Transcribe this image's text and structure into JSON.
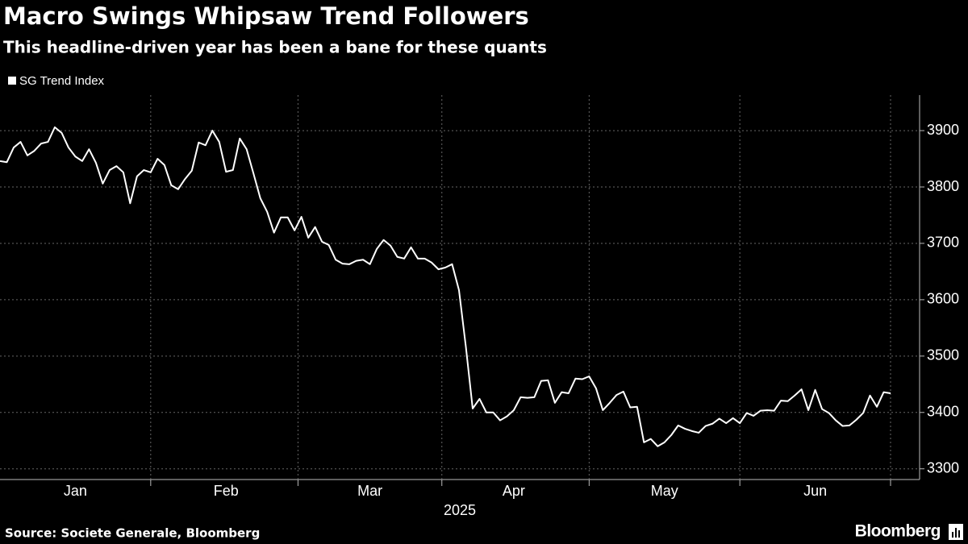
{
  "chart_data": {
    "type": "line",
    "title": "Macro Swings Whipsaw Trend Followers",
    "subtitle": "This headline-driven year has been a bane for these quants",
    "xlabel": "2025",
    "source": "Source: Societe Generale, Bloomberg",
    "brand": "Bloomberg",
    "categories": [
      null,
      null,
      null,
      null,
      null,
      null,
      null,
      null,
      null,
      null,
      null,
      "Jan",
      null,
      null,
      null,
      null,
      null,
      null,
      null,
      null,
      null,
      null,
      null,
      null,
      null,
      null,
      null,
      null,
      null,
      null,
      null,
      null,
      null,
      "Feb",
      null,
      null,
      null,
      null,
      null,
      null,
      null,
      null,
      null,
      null,
      null,
      null,
      null,
      null,
      null,
      null,
      null,
      null,
      null,
      null,
      "Mar",
      null,
      null,
      null,
      null,
      null,
      null,
      null,
      null,
      null,
      null,
      null,
      null,
      null,
      null,
      null,
      null,
      null,
      null,
      null,
      null,
      "Apr",
      null,
      null,
      null,
      null,
      null,
      null,
      null,
      null,
      null,
      null,
      null,
      null,
      null,
      null,
      null,
      null,
      null,
      null,
      null,
      null,
      null,
      "May",
      null,
      null,
      null,
      null,
      null,
      null,
      null,
      null,
      null,
      null,
      null,
      null,
      null,
      null,
      null,
      null,
      null,
      null,
      null,
      null,
      null,
      "Jun",
      null,
      null,
      null,
      null,
      null,
      null,
      null,
      null,
      null,
      null,
      null
    ],
    "series": [
      {
        "name": "SG Trend Index",
        "color": "#ffffff",
        "values": [
          3846,
          3844,
          3870,
          3880,
          3856,
          3864,
          3877,
          3880,
          3906,
          3896,
          3870,
          3854,
          3846,
          3867,
          3843,
          3806,
          3830,
          3837,
          3826,
          3771,
          3819,
          3830,
          3826,
          3850,
          3839,
          3803,
          3796,
          3814,
          3829,
          3879,
          3874,
          3900,
          3880,
          3827,
          3830,
          3886,
          3867,
          3824,
          3780,
          3756,
          3719,
          3746,
          3746,
          3723,
          3747,
          3710,
          3729,
          3703,
          3697,
          3671,
          3664,
          3663,
          3669,
          3671,
          3663,
          3690,
          3706,
          3696,
          3676,
          3673,
          3693,
          3673,
          3673,
          3666,
          3654,
          3657,
          3663,
          3617,
          3517,
          3407,
          3424,
          3400,
          3400,
          3386,
          3393,
          3404,
          3427,
          3426,
          3427,
          3456,
          3457,
          3417,
          3436,
          3434,
          3460,
          3459,
          3464,
          3443,
          3404,
          3417,
          3431,
          3437,
          3409,
          3410,
          3347,
          3353,
          3340,
          3347,
          3360,
          3377,
          3371,
          3367,
          3364,
          3376,
          3380,
          3389,
          3381,
          3390,
          3381,
          3399,
          3394,
          3403,
          3404,
          3403,
          3421,
          3420,
          3430,
          3441,
          3404,
          3440,
          3406,
          3399,
          3386,
          3376,
          3377,
          3387,
          3399,
          3430,
          3410,
          3436,
          3434
        ]
      }
    ],
    "ylim": [
      3281,
      3963
    ],
    "yticks": [
      3300,
      3400,
      3500,
      3600,
      3700,
      3800,
      3900
    ],
    "grid": true,
    "legend": "top-left"
  }
}
